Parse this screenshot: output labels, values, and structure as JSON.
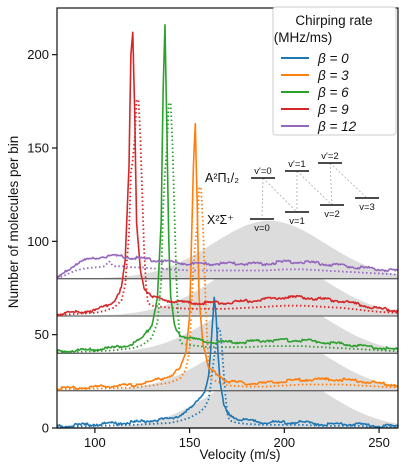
{
  "chart_data": {
    "type": "line",
    "xlabel": "Velocity (m/s)",
    "ylabel": "Number of molecules per bin",
    "xlim": [
      80,
      260
    ],
    "ylim": [
      0,
      225
    ],
    "x_ticks": [
      100,
      150,
      200,
      250
    ],
    "y_ticks": [
      0,
      50,
      100,
      150,
      200
    ],
    "legend": {
      "title_line1": "Chirping rate",
      "title_line2": "(MHz/ms)",
      "placement": "top-right",
      "entries": [
        "β = 0",
        "β = 3",
        "β = 6",
        "β = 9",
        "β = 12"
      ]
    },
    "stack_offsets": [
      0,
      20,
      40,
      60,
      80
    ],
    "series": [
      {
        "name": "β = 0",
        "color": "#1f77b4",
        "offset": 0,
        "x": [
          80,
          100,
          120,
          140,
          145,
          150,
          155,
          158,
          160,
          161,
          162,
          163,
          164,
          165,
          166,
          168,
          170,
          175,
          180,
          190,
          200,
          210,
          220,
          230,
          240,
          250,
          260
        ],
        "y": [
          1,
          2,
          3,
          5,
          7,
          10,
          15,
          20,
          28,
          40,
          55,
          70,
          60,
          40,
          25,
          12,
          8,
          5,
          4,
          3,
          3,
          3,
          2,
          2,
          2,
          1,
          1
        ]
      },
      {
        "name": "β = 3",
        "color": "#ff7f0e",
        "offset": 20,
        "x": [
          80,
          100,
          120,
          130,
          140,
          145,
          148,
          150,
          151,
          152,
          153,
          154,
          155,
          157,
          160,
          170,
          180,
          190,
          200,
          210,
          220,
          230,
          240,
          250,
          260
        ],
        "y": [
          1,
          2,
          3,
          5,
          8,
          12,
          20,
          40,
          80,
          120,
          143,
          100,
          50,
          25,
          12,
          5,
          4,
          4,
          5,
          6,
          6,
          6,
          5,
          4,
          3
        ]
      },
      {
        "name": "β = 6",
        "color": "#2ca02c",
        "offset": 40,
        "x": [
          80,
          100,
          110,
          120,
          125,
          130,
          133,
          135,
          136,
          137,
          138,
          139,
          140,
          142,
          145,
          150,
          160,
          170,
          180,
          190,
          200,
          210,
          220,
          230,
          240,
          250,
          260
        ],
        "y": [
          1,
          2,
          3,
          5,
          8,
          15,
          30,
          70,
          140,
          176,
          120,
          60,
          30,
          15,
          10,
          8,
          6,
          6,
          6,
          7,
          7,
          7,
          6,
          5,
          4,
          3,
          2
        ]
      },
      {
        "name": "β = 9",
        "color": "#d62728",
        "offset": 60,
        "x": [
          80,
          90,
          100,
          105,
          110,
          114,
          116,
          118,
          119,
          120,
          121,
          122,
          124,
          126,
          130,
          140,
          150,
          160,
          170,
          180,
          190,
          200,
          210,
          220,
          230,
          240,
          250,
          260
        ],
        "y": [
          1,
          2,
          3,
          5,
          8,
          15,
          30,
          80,
          140,
          152,
          110,
          50,
          25,
          15,
          10,
          8,
          7,
          7,
          7,
          8,
          9,
          10,
          10,
          9,
          8,
          6,
          4,
          3
        ]
      },
      {
        "name": "β = 12",
        "color": "#9467bd",
        "offset": 80,
        "x": [
          80,
          85,
          90,
          95,
          100,
          105,
          110,
          115,
          120,
          125,
          130,
          140,
          150,
          160,
          170,
          180,
          190,
          200,
          210,
          220,
          230,
          240,
          250,
          260
        ],
        "y": [
          0,
          4,
          8,
          10,
          11,
          12,
          12,
          12,
          11,
          11,
          10,
          9,
          8,
          8,
          8,
          8,
          8,
          9,
          9,
          8,
          7,
          6,
          5,
          4
        ]
      }
    ],
    "inset": {
      "upper_state": "A²Π₁/₂",
      "lower_state": "X²Σ⁺",
      "upper_levels": [
        "v'=0",
        "v'=1",
        "v'=2"
      ],
      "lower_levels": [
        "v=0",
        "v=1",
        "v=2",
        "v=3"
      ]
    }
  }
}
